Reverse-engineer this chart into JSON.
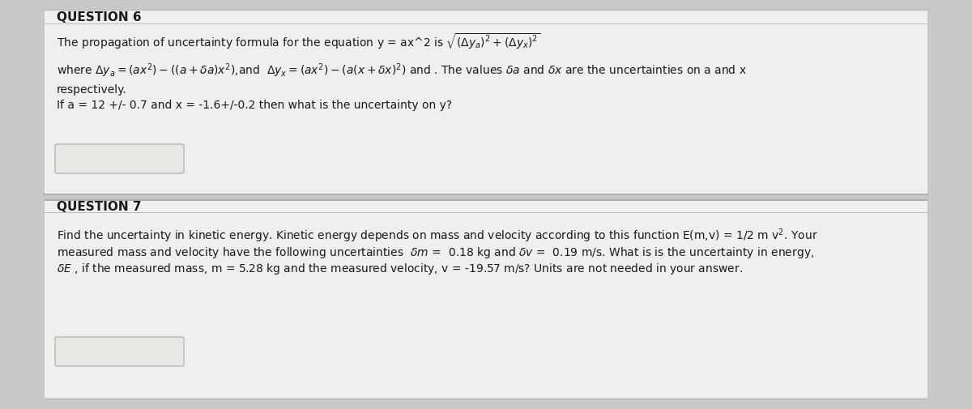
{
  "bg_color": "#c8c8c8",
  "panel_color": "#f0efee",
  "text_color": "#1a1a1a",
  "q6_title": "QUESTION 6",
  "q7_title": "QUESTION 7",
  "fig_width": 12.0,
  "fig_height": 5.06,
  "dpi": 100,
  "divider_color": "#bbbbbb",
  "box_color": "#e8e7e5",
  "answer_box_color": "#e0dedd",
  "title_fontsize": 11,
  "body_fontsize": 10
}
